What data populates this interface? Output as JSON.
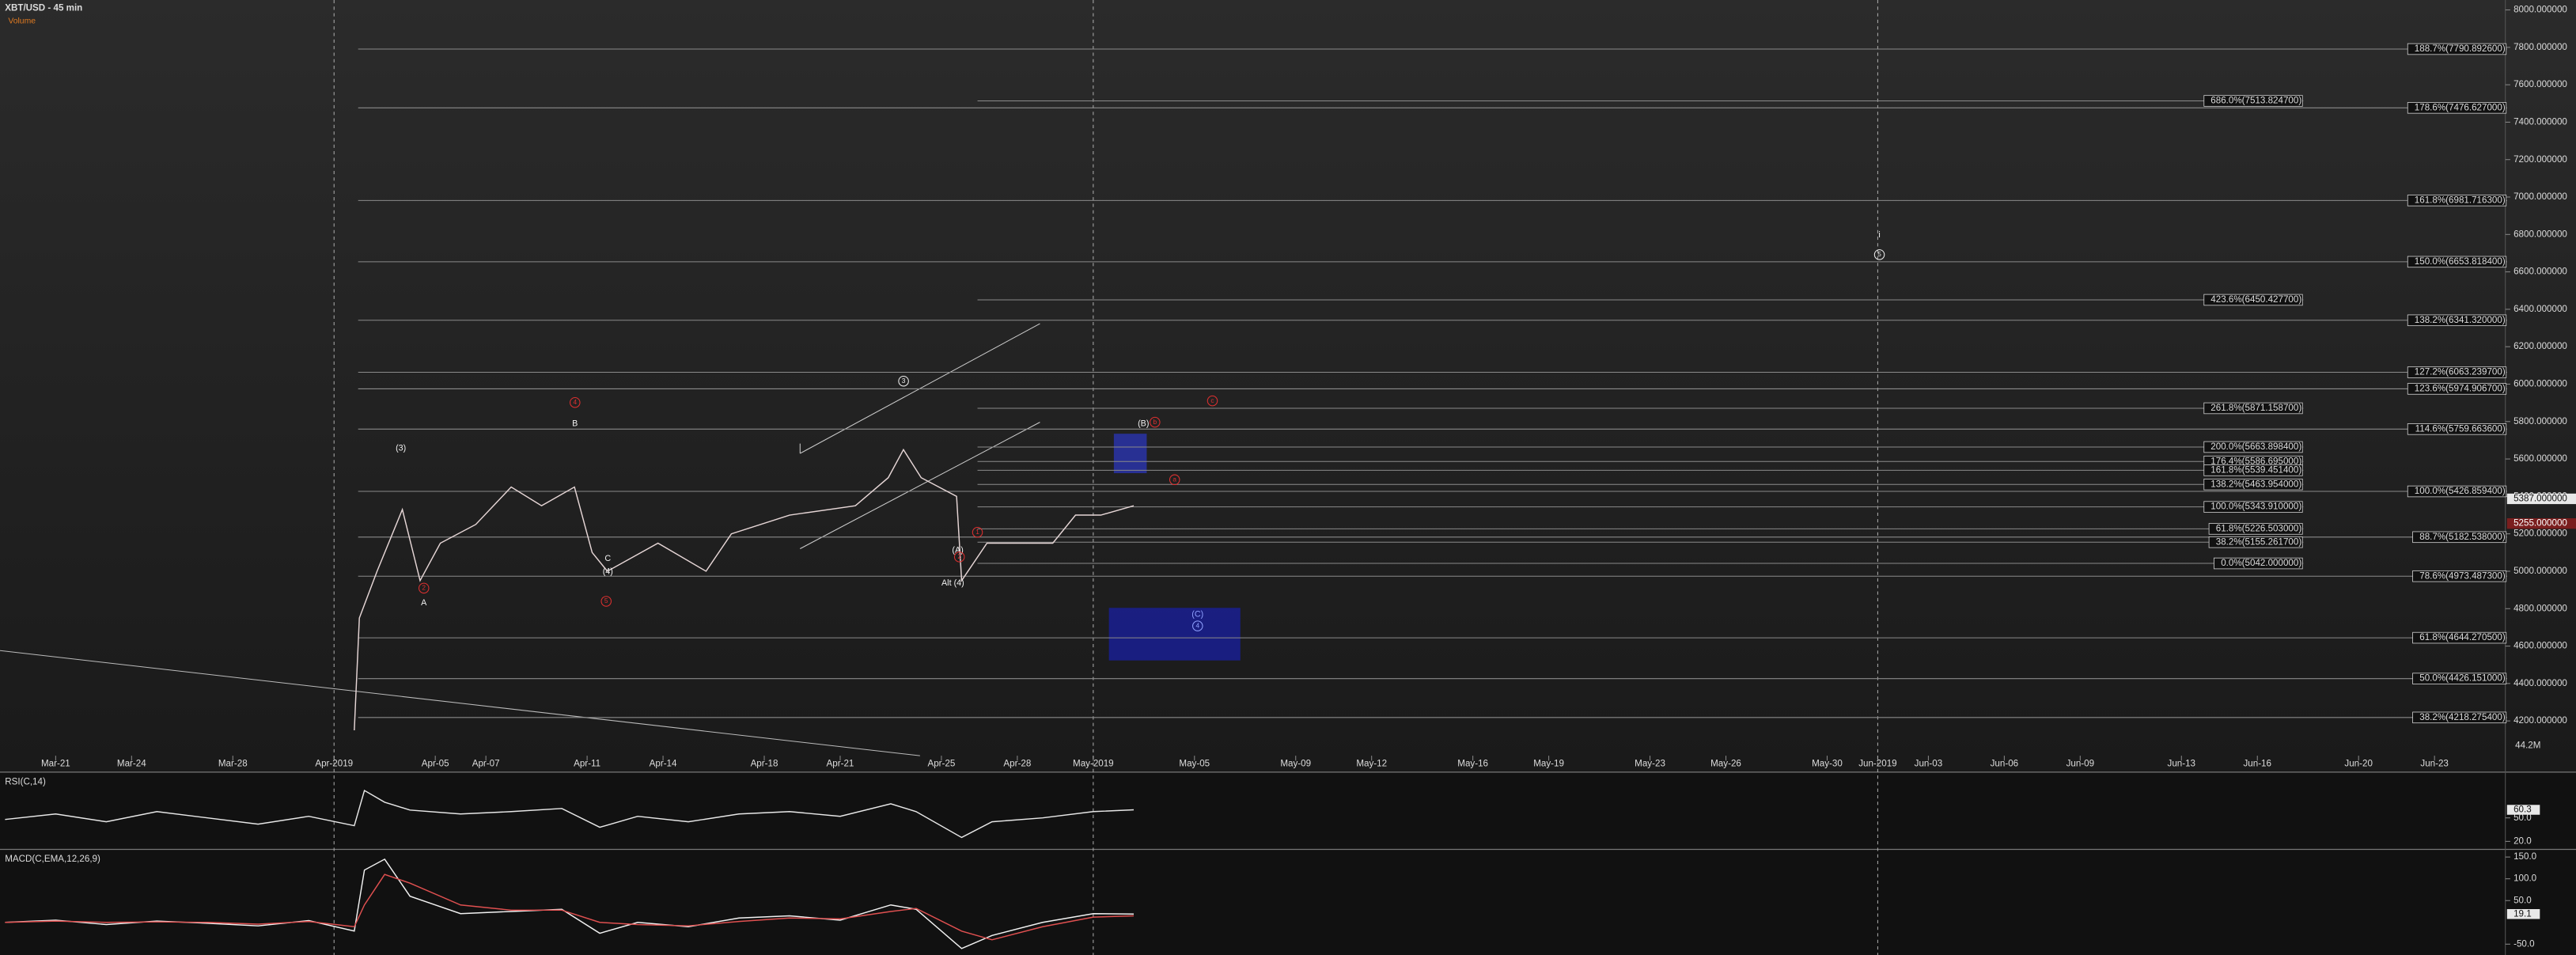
{
  "chart_data": [
    {
      "type": "line",
      "title": "XBT/USD - 45 min",
      "subtitle": "Volume",
      "color": "#e6d6d6",
      "x": [
        11.8,
        12,
        12.7,
        13.7,
        14.4,
        15.2,
        16.6,
        18,
        19.2,
        20.5,
        21.2,
        21.8,
        23.8,
        25.7,
        26.7,
        29,
        31.6,
        32.9,
        33.5,
        34.2,
        35.6,
        35.8,
        36.8,
        39.4,
        40.3,
        41.3,
        42.6
      ],
      "values": [
        4150,
        4750,
        5000,
        5330,
        4950,
        5150,
        5250,
        5450,
        5350,
        5450,
        5100,
        5000,
        5150,
        5000,
        5200,
        5300,
        5350,
        5500,
        5650,
        5500,
        5400,
        4950,
        5150,
        5150,
        5300,
        5300,
        5350
      ],
      "xlim": [
        -2.2,
        96.8
      ],
      "xticks": [
        {
          "value": 0,
          "label": "Mar-21"
        },
        {
          "value": 3,
          "label": "Mar-24"
        },
        {
          "value": 7,
          "label": "Mar-28"
        },
        {
          "value": 11,
          "label": "Apr-2019"
        },
        {
          "value": 15,
          "label": "Apr-05"
        },
        {
          "value": 17,
          "label": "Apr-07"
        },
        {
          "value": 21,
          "label": "Apr-11"
        },
        {
          "value": 24,
          "label": "Apr-14"
        },
        {
          "value": 28,
          "label": "Apr-18"
        },
        {
          "value": 31,
          "label": "Apr-21"
        },
        {
          "value": 35,
          "label": "Apr-25"
        },
        {
          "value": 38,
          "label": "Apr-28"
        },
        {
          "value": 41,
          "label": "May-2019"
        },
        {
          "value": 45,
          "label": "May-05"
        },
        {
          "value": 49,
          "label": "May-09"
        },
        {
          "value": 52,
          "label": "May-12"
        },
        {
          "value": 56,
          "label": "May-16"
        },
        {
          "value": 59,
          "label": "May-19"
        },
        {
          "value": 63,
          "label": "May-23"
        },
        {
          "value": 66,
          "label": "May-26"
        },
        {
          "value": 70,
          "label": "May-30"
        },
        {
          "value": 72,
          "label": "Jun-2019"
        },
        {
          "value": 74,
          "label": "Jun-03"
        },
        {
          "value": 77,
          "label": "Jun-06"
        },
        {
          "value": 80,
          "label": "Jun-09"
        },
        {
          "value": 84,
          "label": "Jun-13"
        },
        {
          "value": 87,
          "label": "Jun-16"
        },
        {
          "value": 91,
          "label": "Jun-20"
        },
        {
          "value": 94,
          "label": "Jun-23"
        }
      ],
      "ylim": [
        4014,
        8053
      ],
      "yticks": [
        {
          "value": 4200,
          "label": "4200.000000"
        },
        {
          "value": 4400,
          "label": "4400.000000"
        },
        {
          "value": 4600,
          "label": "4600.000000"
        },
        {
          "value": 4800,
          "label": "4800.000000"
        },
        {
          "value": 5000,
          "label": "5000.000000"
        },
        {
          "value": 5200,
          "label": "5200.000000"
        },
        {
          "value": 5400,
          "label": "5400.000000"
        },
        {
          "value": 5600,
          "label": "5600.000000"
        },
        {
          "value": 5800,
          "label": "5800.000000"
        },
        {
          "value": 6000,
          "label": "6000.000000"
        },
        {
          "value": 6200,
          "label": "6200.000000"
        },
        {
          "value": 6400,
          "label": "6400.000000"
        },
        {
          "value": 6600,
          "label": "6600.000000"
        },
        {
          "value": 6800,
          "label": "6800.000000"
        },
        {
          "value": 7000,
          "label": "7000.000000"
        },
        {
          "value": 7200,
          "label": "7200.000000"
        },
        {
          "value": 7400,
          "label": "7400.000000"
        },
        {
          "value": 7600,
          "label": "7600.000000"
        },
        {
          "value": 7800,
          "label": "7800.000000"
        },
        {
          "value": 8000,
          "label": "8000.000000"
        }
      ],
      "fib_levels_outer": [
        {
          "value": 7790.8926,
          "label": "188.7%(7790.892600)"
        },
        {
          "value": 7476.627,
          "label": "178.6%(7476.627000)"
        },
        {
          "value": 6981.7163,
          "label": "161.8%(6981.716300)"
        },
        {
          "value": 6653.8184,
          "label": "150.0%(6653.818400)"
        },
        {
          "value": 6341.32,
          "label": "138.2%(6341.320000)"
        },
        {
          "value": 6063.2397,
          "label": "127.2%(6063.239700)"
        },
        {
          "value": 5974.9067,
          "label": "123.6%(5974.906700)"
        },
        {
          "value": 5759.6636,
          "label": "114.6%(5759.663600)"
        },
        {
          "value": 5426.8594,
          "label": "100.0%(5426.859400)"
        },
        {
          "value": 5182.538,
          "label": "88.7%(5182.538000)"
        },
        {
          "value": 4973.4873,
          "label": "78.6%(4973.487300)"
        },
        {
          "value": 4644.2705,
          "label": "61.8%(4644.270500)"
        },
        {
          "value": 4426.151,
          "label": "50.0%(4426.151000)"
        },
        {
          "value": 4218.2754,
          "label": "38.2%(4218.275400)"
        }
      ],
      "fib_levels_inner": [
        {
          "value": 7513.8247,
          "label": "686.0%(7513.824700)"
        },
        {
          "value": 6450.4277,
          "label": "423.6%(6450.427700)"
        },
        {
          "value": 5871.1587,
          "label": "261.8%(5871.158700)"
        },
        {
          "value": 5663.8984,
          "label": "200.0%(5663.898400)"
        },
        {
          "value": 5586.695,
          "label": "176.4%(5586.695000)"
        },
        {
          "value": 5539.4514,
          "label": "161.8%(5539.451400)"
        },
        {
          "value": 5463.954,
          "label": "138.2%(5463.954000)"
        },
        {
          "value": 5343.91,
          "label": "100.0%(5343.910000)"
        },
        {
          "value": 5226.503,
          "label": "61.8%(5226.503000)"
        },
        {
          "value": 5155.2617,
          "label": "38.2%(5155.261700)"
        },
        {
          "value": 5042,
          "label": "0.0%(5042.000000)"
        }
      ],
      "last_labels": [
        {
          "value": 5387,
          "label": "5387.000000"
        },
        {
          "value": 5255,
          "label": "5255.000000"
        }
      ],
      "volume_last_label": "44.2M",
      "wave_labels": [
        "(3)",
        "A",
        "B",
        "C",
        "(4)",
        "3",
        "(A)",
        "Alt (4)",
        "(B)",
        "(C)",
        "4",
        "i",
        "5",
        "2",
        "4",
        "5",
        "1",
        "2",
        "b",
        "c",
        "a"
      ]
    },
    {
      "type": "line",
      "title": "RSI(C,14)",
      "color": "#e8e8e8",
      "x": [
        -2,
        0,
        2,
        4,
        6,
        8,
        10,
        11.8,
        12.2,
        13,
        14,
        16,
        18,
        20,
        21.5,
        23,
        25,
        27,
        29,
        31,
        33,
        34,
        35.8,
        37,
        39,
        41,
        42.6
      ],
      "values": [
        48,
        55,
        45,
        58,
        50,
        42,
        52,
        40,
        85,
        70,
        60,
        55,
        58,
        62,
        38,
        52,
        45,
        55,
        58,
        52,
        68,
        58,
        25,
        45,
        50,
        58,
        60.3
      ],
      "xlim": [
        -2.2,
        96.8
      ],
      "ylim": [
        14,
        100
      ],
      "yticks": [
        {
          "value": 20,
          "label": "20.0"
        },
        {
          "value": 50,
          "label": "50.0"
        }
      ],
      "last_label": {
        "value": 60.3,
        "label": "60.3"
      }
    },
    {
      "type": "line",
      "title": "MACD(C,EMA,12,26,9)",
      "x": [
        -2,
        0,
        2,
        4,
        6,
        8,
        10,
        11.8,
        12.2,
        13,
        14,
        16,
        18,
        20,
        21.5,
        23,
        25,
        27,
        29,
        31,
        33,
        34,
        35.8,
        37,
        39,
        41,
        42.6
      ],
      "series": [
        {
          "color": "#f2f2f2",
          "values": [
            0,
            5,
            -5,
            3,
            -2,
            -8,
            4,
            -20,
            120,
            145,
            60,
            20,
            25,
            30,
            -25,
            0,
            -10,
            10,
            15,
            5,
            40,
            30,
            -60,
            -30,
            0,
            20,
            19.1
          ]
        },
        {
          "color": "#e05050",
          "values": [
            0,
            3,
            0,
            1,
            0,
            -4,
            2,
            -10,
            40,
            110,
            90,
            40,
            28,
            28,
            0,
            -5,
            -8,
            2,
            10,
            8,
            25,
            32,
            -20,
            -40,
            -10,
            12,
            15
          ]
        }
      ],
      "xlim": [
        -2.2,
        96.8
      ],
      "ylim": [
        -70,
        160
      ],
      "yticks": [
        {
          "value": -50,
          "label": "-50.0"
        },
        {
          "value": 50,
          "label": "50.0"
        },
        {
          "value": 100,
          "label": "100.0"
        },
        {
          "value": 150,
          "label": "150.0"
        }
      ],
      "last_label": {
        "value": 19.1,
        "label": "19.1"
      }
    }
  ]
}
